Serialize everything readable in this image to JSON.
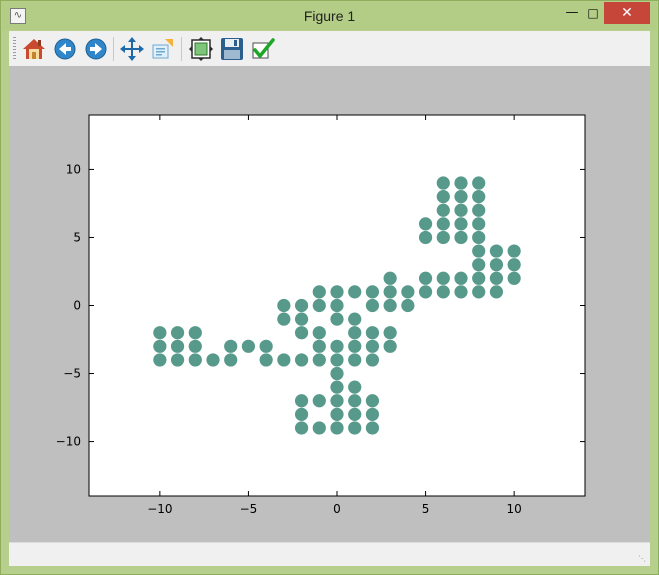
{
  "window": {
    "title": "Figure 1",
    "app_icon": "figure-app-icon"
  },
  "controls": {
    "minimize": "—",
    "maximize": "□",
    "close": "✕"
  },
  "toolbar": {
    "buttons": [
      {
        "name": "home-icon",
        "tooltip": "Reset original view"
      },
      {
        "name": "back-icon",
        "tooltip": "Back to previous view"
      },
      {
        "name": "forward-icon",
        "tooltip": "Forward to next view"
      },
      {
        "name": "pan-icon",
        "tooltip": "Pan axes"
      },
      {
        "name": "zoom-icon",
        "tooltip": "Zoom to rectangle"
      },
      {
        "name": "subplots-icon",
        "tooltip": "Configure subplots"
      },
      {
        "name": "save-icon",
        "tooltip": "Save the figure"
      },
      {
        "name": "edit-check-icon",
        "tooltip": "Edit axis parameters"
      }
    ]
  },
  "status": {
    "text": ""
  },
  "colors": {
    "marker": "#57998a",
    "canvas": "#bfbfbf",
    "axes_bg": "#ffffff"
  },
  "chart_data": {
    "type": "scatter",
    "title": "",
    "xlabel": "",
    "ylabel": "",
    "xlim": [
      -14,
      14
    ],
    "ylim": [
      -14,
      14
    ],
    "xticks": [
      -10,
      -5,
      0,
      5,
      10
    ],
    "yticks": [
      -10,
      -5,
      0,
      5,
      10
    ],
    "xtick_labels": [
      "−10",
      "−5",
      "0",
      "5",
      "10"
    ],
    "ytick_labels": [
      "−10",
      "−5",
      "0",
      "5",
      "10"
    ],
    "grid": false,
    "legend": "none",
    "series": [
      {
        "points": [
          [
            6,
            9
          ],
          [
            7,
            9
          ],
          [
            8,
            9
          ],
          [
            6,
            8
          ],
          [
            7,
            8
          ],
          [
            8,
            8
          ],
          [
            6,
            7
          ],
          [
            7,
            7
          ],
          [
            8,
            7
          ],
          [
            5,
            6
          ],
          [
            6,
            6
          ],
          [
            7,
            6
          ],
          [
            8,
            6
          ],
          [
            5,
            5
          ],
          [
            6,
            5
          ],
          [
            7,
            5
          ],
          [
            8,
            5
          ],
          [
            8,
            4
          ],
          [
            9,
            4
          ],
          [
            10,
            4
          ],
          [
            8,
            3
          ],
          [
            9,
            3
          ],
          [
            10,
            3
          ],
          [
            3,
            2
          ],
          [
            5,
            2
          ],
          [
            6,
            2
          ],
          [
            7,
            2
          ],
          [
            8,
            2
          ],
          [
            9,
            2
          ],
          [
            10,
            2
          ],
          [
            -1,
            1
          ],
          [
            0,
            1
          ],
          [
            1,
            1
          ],
          [
            2,
            1
          ],
          [
            3,
            1
          ],
          [
            4,
            1
          ],
          [
            5,
            1
          ],
          [
            6,
            1
          ],
          [
            7,
            1
          ],
          [
            8,
            1
          ],
          [
            9,
            1
          ],
          [
            -3,
            0
          ],
          [
            -2,
            0
          ],
          [
            -1,
            0
          ],
          [
            0,
            0
          ],
          [
            2,
            0
          ],
          [
            3,
            0
          ],
          [
            4,
            0
          ],
          [
            -3,
            -1
          ],
          [
            -2,
            -1
          ],
          [
            0,
            -1
          ],
          [
            1,
            -1
          ],
          [
            -10,
            -2
          ],
          [
            -9,
            -2
          ],
          [
            -8,
            -2
          ],
          [
            -2,
            -2
          ],
          [
            -1,
            -2
          ],
          [
            1,
            -2
          ],
          [
            2,
            -2
          ],
          [
            3,
            -2
          ],
          [
            -10,
            -3
          ],
          [
            -9,
            -3
          ],
          [
            -8,
            -3
          ],
          [
            -6,
            -3
          ],
          [
            -5,
            -3
          ],
          [
            -4,
            -3
          ],
          [
            -1,
            -3
          ],
          [
            0,
            -3
          ],
          [
            1,
            -3
          ],
          [
            2,
            -3
          ],
          [
            3,
            -3
          ],
          [
            -10,
            -4
          ],
          [
            -9,
            -4
          ],
          [
            -8,
            -4
          ],
          [
            -7,
            -4
          ],
          [
            -6,
            -4
          ],
          [
            -4,
            -4
          ],
          [
            -3,
            -4
          ],
          [
            -2,
            -4
          ],
          [
            -1,
            -4
          ],
          [
            0,
            -4
          ],
          [
            1,
            -4
          ],
          [
            2,
            -4
          ],
          [
            0,
            -5
          ],
          [
            0,
            -6
          ],
          [
            1,
            -6
          ],
          [
            -2,
            -7
          ],
          [
            -1,
            -7
          ],
          [
            0,
            -7
          ],
          [
            1,
            -7
          ],
          [
            2,
            -7
          ],
          [
            -2,
            -8
          ],
          [
            0,
            -8
          ],
          [
            1,
            -8
          ],
          [
            2,
            -8
          ],
          [
            -2,
            -9
          ],
          [
            -1,
            -9
          ],
          [
            0,
            -9
          ],
          [
            1,
            -9
          ],
          [
            2,
            -9
          ]
        ]
      }
    ]
  }
}
